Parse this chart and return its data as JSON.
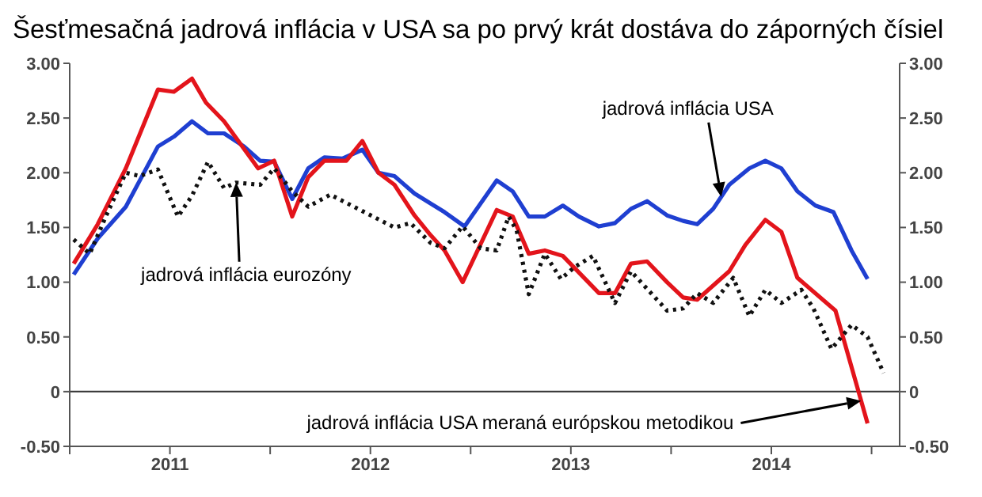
{
  "chart_data": {
    "type": "line",
    "title": "Šesťmesačná jadrová inflácia v USA sa po prvý krát dostáva do záporných čísiel",
    "series": [
      {
        "color": "#1f3fd1",
        "line_style": "solid",
        "x": [
          2011.02,
          2011.14,
          2011.28,
          2011.44,
          2011.52,
          2011.61,
          2011.69,
          2011.77,
          2011.87,
          2011.95,
          2012.02,
          2012.11,
          2012.19,
          2012.27,
          2012.36,
          2012.46,
          2012.54,
          2012.62,
          2012.72,
          2012.87,
          2012.97,
          2013.13,
          2013.21,
          2013.29,
          2013.37,
          2013.46,
          2013.54,
          2013.64,
          2013.72,
          2013.8,
          2013.88,
          2013.98,
          2014.06,
          2014.13,
          2014.21,
          2014.29,
          2014.39,
          2014.47,
          2014.55,
          2014.63,
          2014.72,
          2014.81,
          2014.9,
          2014.98
        ],
        "values": [
          1.07,
          1.4,
          1.69,
          2.24,
          2.33,
          2.47,
          2.36,
          2.36,
          2.24,
          2.11,
          2.1,
          1.76,
          2.04,
          2.14,
          2.13,
          2.21,
          2.0,
          1.97,
          1.81,
          1.64,
          1.51,
          1.93,
          1.83,
          1.6,
          1.6,
          1.7,
          1.6,
          1.51,
          1.54,
          1.67,
          1.74,
          1.61,
          1.56,
          1.53,
          1.67,
          1.89,
          2.04,
          2.11,
          2.04,
          1.83,
          1.7,
          1.64,
          1.29,
          1.03
        ]
      },
      {
        "color": "#e3141b",
        "line_style": "solid",
        "x": [
          2011.02,
          2011.14,
          2011.28,
          2011.44,
          2011.52,
          2011.61,
          2011.68,
          2011.77,
          2011.94,
          2012.02,
          2012.11,
          2012.19,
          2012.27,
          2012.38,
          2012.46,
          2012.54,
          2012.62,
          2012.72,
          2012.8,
          2012.87,
          2012.96,
          2013.13,
          2013.21,
          2013.29,
          2013.37,
          2013.46,
          2013.64,
          2013.72,
          2013.8,
          2013.88,
          2013.98,
          2014.06,
          2014.13,
          2014.29,
          2014.37,
          2014.47,
          2014.55,
          2014.63,
          2014.82,
          2014.98
        ],
        "values": [
          1.17,
          1.53,
          2.04,
          2.76,
          2.74,
          2.86,
          2.64,
          2.47,
          2.04,
          2.11,
          1.6,
          1.96,
          2.11,
          2.11,
          2.29,
          2.0,
          1.89,
          1.61,
          1.43,
          1.29,
          1.0,
          1.66,
          1.6,
          1.26,
          1.29,
          1.24,
          0.9,
          0.9,
          1.17,
          1.19,
          1.0,
          0.86,
          0.84,
          1.1,
          1.34,
          1.57,
          1.46,
          1.04,
          0.74,
          -0.29
        ]
      },
      {
        "color": "#111111",
        "line_style": "dotted",
        "x": [
          2011.02,
          2011.1,
          2011.18,
          2011.28,
          2011.35,
          2011.44,
          2011.54,
          2011.61,
          2011.69,
          2011.77,
          2011.83,
          2011.95,
          2012.02,
          2012.11,
          2012.19,
          2012.3,
          2012.62,
          2012.7,
          2012.8,
          2012.87,
          2012.96,
          2013.05,
          2013.13,
          2013.19,
          2013.23,
          2013.29,
          2013.37,
          2013.45,
          2013.52,
          2013.61,
          2013.72,
          2013.8,
          2013.9,
          2013.98,
          2014.06,
          2014.13,
          2014.21,
          2014.31,
          2014.39,
          2014.47,
          2014.55,
          2014.65,
          2014.71,
          2014.8,
          2014.9,
          2014.98,
          2015.06
        ],
        "values": [
          1.39,
          1.26,
          1.6,
          2.0,
          1.97,
          2.03,
          1.6,
          1.79,
          2.1,
          1.86,
          1.91,
          1.89,
          2.04,
          1.83,
          1.69,
          1.8,
          1.5,
          1.54,
          1.36,
          1.31,
          1.51,
          1.31,
          1.29,
          1.6,
          1.47,
          0.89,
          1.26,
          1.03,
          1.14,
          1.24,
          0.81,
          1.1,
          0.9,
          0.74,
          0.76,
          0.9,
          0.81,
          1.04,
          0.69,
          0.93,
          0.81,
          0.93,
          0.76,
          0.39,
          0.61,
          0.5,
          0.17
        ]
      }
    ],
    "xlim": [
      2011,
      2015.14
    ],
    "xticks": [
      {
        "value": 2011,
        "label": null
      },
      {
        "value": 2011.5,
        "label": "2011"
      },
      {
        "value": 2012,
        "label": null
      },
      {
        "value": 2012.5,
        "label": "2012"
      },
      {
        "value": 2013,
        "label": null
      },
      {
        "value": 2013.5,
        "label": "2013"
      },
      {
        "value": 2014,
        "label": null
      },
      {
        "value": 2014.5,
        "label": "2014"
      },
      {
        "value": 2015,
        "label": null
      }
    ],
    "ylim": [
      -0.5,
      3
    ],
    "yticks": [
      {
        "value": -0.5,
        "label": "-0.50"
      },
      0,
      {
        "value": 0.5,
        "label": "0.50"
      },
      {
        "value": 1,
        "label": "1.00"
      },
      {
        "value": 1.5,
        "label": "1.50"
      },
      {
        "value": 2,
        "label": "2.00"
      },
      {
        "value": 2.5,
        "label": "2.50"
      },
      {
        "value": 3,
        "label": "3.00"
      }
    ],
    "y2lim": [
      -0.5,
      3
    ],
    "y2ticks": [
      {
        "value": -0.5,
        "label": "-0.50"
      },
      0,
      {
        "value": 0.5,
        "label": "0.50"
      },
      {
        "value": 1,
        "label": "1.00"
      },
      {
        "value": 1.5,
        "label": "1.50"
      },
      {
        "value": 2,
        "label": "2.00"
      },
      {
        "value": 2.5,
        "label": "2.50"
      },
      {
        "value": 3,
        "label": "3.00"
      }
    ],
    "ref_lines": [
      {
        "axis": "y",
        "value": 0,
        "color": "#333333"
      }
    ],
    "annotations": [
      "jadrová inflácia USA",
      "jadrová inflácia eurozóny",
      "jadrová inflácia USA meraná európskou metodikou"
    ],
    "marker": "none"
  }
}
